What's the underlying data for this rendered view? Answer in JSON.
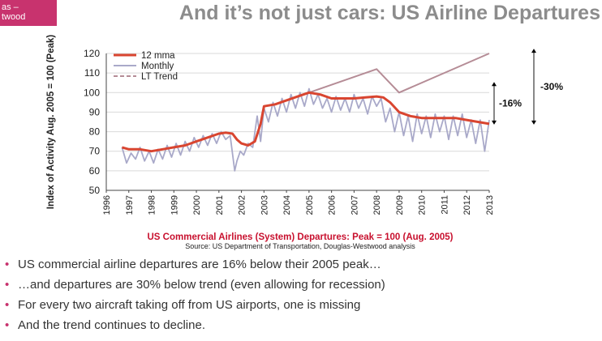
{
  "logo": {
    "line1": "as –",
    "line2": "twood"
  },
  "title": "And it’s not just cars: US Airline Departures",
  "chart_data": {
    "type": "line",
    "ylabel": "Index of Activity Aug. 2005 = 100 (Peak)",
    "ylim": [
      50,
      120
    ],
    "yticks": [
      50,
      60,
      70,
      80,
      90,
      100,
      110,
      120
    ],
    "xlim": [
      1996,
      2013
    ],
    "xticks": [
      "1996",
      "1997",
      "1998",
      "1999",
      "2000",
      "2001",
      "2002",
      "2003",
      "2004",
      "2005",
      "2006",
      "2007",
      "2008",
      "2009",
      "2010",
      "2011",
      "2012",
      "2013"
    ],
    "legend_position": "top-left",
    "series": [
      {
        "name": "12 mma",
        "color": "#d94530",
        "x": [
          1996.7,
          1997,
          1997.5,
          1998,
          1998.5,
          1999,
          1999.5,
          2000,
          2000.5,
          2001,
          2001.3,
          2001.6,
          2001.8,
          2002,
          2002.3,
          2002.6,
          2002.85,
          2003,
          2003.5,
          2004,
          2004.5,
          2005,
          2005.5,
          2006,
          2006.5,
          2007,
          2007.5,
          2008,
          2008.3,
          2008.6,
          2009,
          2009.5,
          2010,
          2010.5,
          2011,
          2011.5,
          2012,
          2012.5,
          2013
        ],
        "y": [
          72,
          71,
          71,
          70,
          71,
          72,
          73,
          75,
          77,
          79,
          79.5,
          79,
          76,
          74,
          73,
          75,
          84,
          93,
          94,
          96,
          98,
          100,
          99,
          97,
          97,
          97,
          97.5,
          98,
          97.5,
          95,
          90,
          88,
          87,
          87,
          87,
          87,
          86,
          85,
          84
        ]
      },
      {
        "name": "Monthly",
        "color": "#a9a9c9",
        "x": [
          1996.7,
          1996.9,
          1997.1,
          1997.3,
          1997.5,
          1997.7,
          1997.9,
          1998.1,
          1998.3,
          1998.5,
          1998.7,
          1998.9,
          1999.1,
          1999.3,
          1999.5,
          1999.7,
          1999.9,
          2000.1,
          2000.3,
          2000.5,
          2000.7,
          2000.9,
          2001.1,
          2001.3,
          2001.5,
          2001.7,
          2001.8,
          2001.95,
          2002.1,
          2002.3,
          2002.5,
          2002.7,
          2002.85,
          2003,
          2003.2,
          2003.4,
          2003.6,
          2003.8,
          2004,
          2004.2,
          2004.4,
          2004.6,
          2004.8,
          2005,
          2005.2,
          2005.4,
          2005.6,
          2005.8,
          2006,
          2006.2,
          2006.4,
          2006.6,
          2006.8,
          2007,
          2007.2,
          2007.4,
          2007.6,
          2007.8,
          2008,
          2008.2,
          2008.4,
          2008.6,
          2008.8,
          2009,
          2009.2,
          2009.4,
          2009.6,
          2009.8,
          2010,
          2010.2,
          2010.4,
          2010.6,
          2010.8,
          2011,
          2011.2,
          2011.4,
          2011.6,
          2011.8,
          2012,
          2012.2,
          2012.4,
          2012.6,
          2012.8,
          2013
        ],
        "y": [
          72,
          64,
          69,
          66,
          72,
          65,
          70,
          64,
          71,
          66,
          73,
          67,
          74,
          68,
          75,
          70,
          77,
          72,
          78,
          73,
          79,
          74,
          80,
          76,
          78,
          60,
          65,
          70,
          68,
          74,
          72,
          88,
          75,
          92,
          85,
          95,
          88,
          97,
          90,
          99,
          92,
          100,
          93,
          102,
          94,
          99,
          92,
          97,
          90,
          98,
          91,
          97,
          90,
          99,
          92,
          97,
          89,
          98,
          93,
          97,
          85,
          92,
          80,
          90,
          78,
          88,
          75,
          89,
          79,
          88,
          77,
          89,
          80,
          88,
          76,
          88,
          78,
          89,
          77,
          86,
          74,
          86,
          70,
          86
        ]
      },
      {
        "name": "LT Trend",
        "color": "#b58c96",
        "x": [
          2005,
          2008,
          2009,
          2013
        ],
        "y": [
          100,
          112,
          100,
          120
        ]
      }
    ],
    "annotations": [
      {
        "text": "-16%",
        "y_top": 105,
        "y_bottom": 84
      },
      {
        "text": "-30%",
        "y_top": 122,
        "y_bottom": 84
      }
    ]
  },
  "caption": {
    "main": "US Commercial Airlines (System) Departures: Peak = 100 (Aug. 2005)",
    "source": "Source: US Department of Transportation, Douglas-Westwood analysis"
  },
  "bullets": [
    "US commercial airline departures are 16% below their 2005 peak…",
    "…and departures are 30% below trend (even allowing for recession)",
    "For every two aircraft taking off from US airports, one is missing",
    "And the trend continues to decline."
  ]
}
